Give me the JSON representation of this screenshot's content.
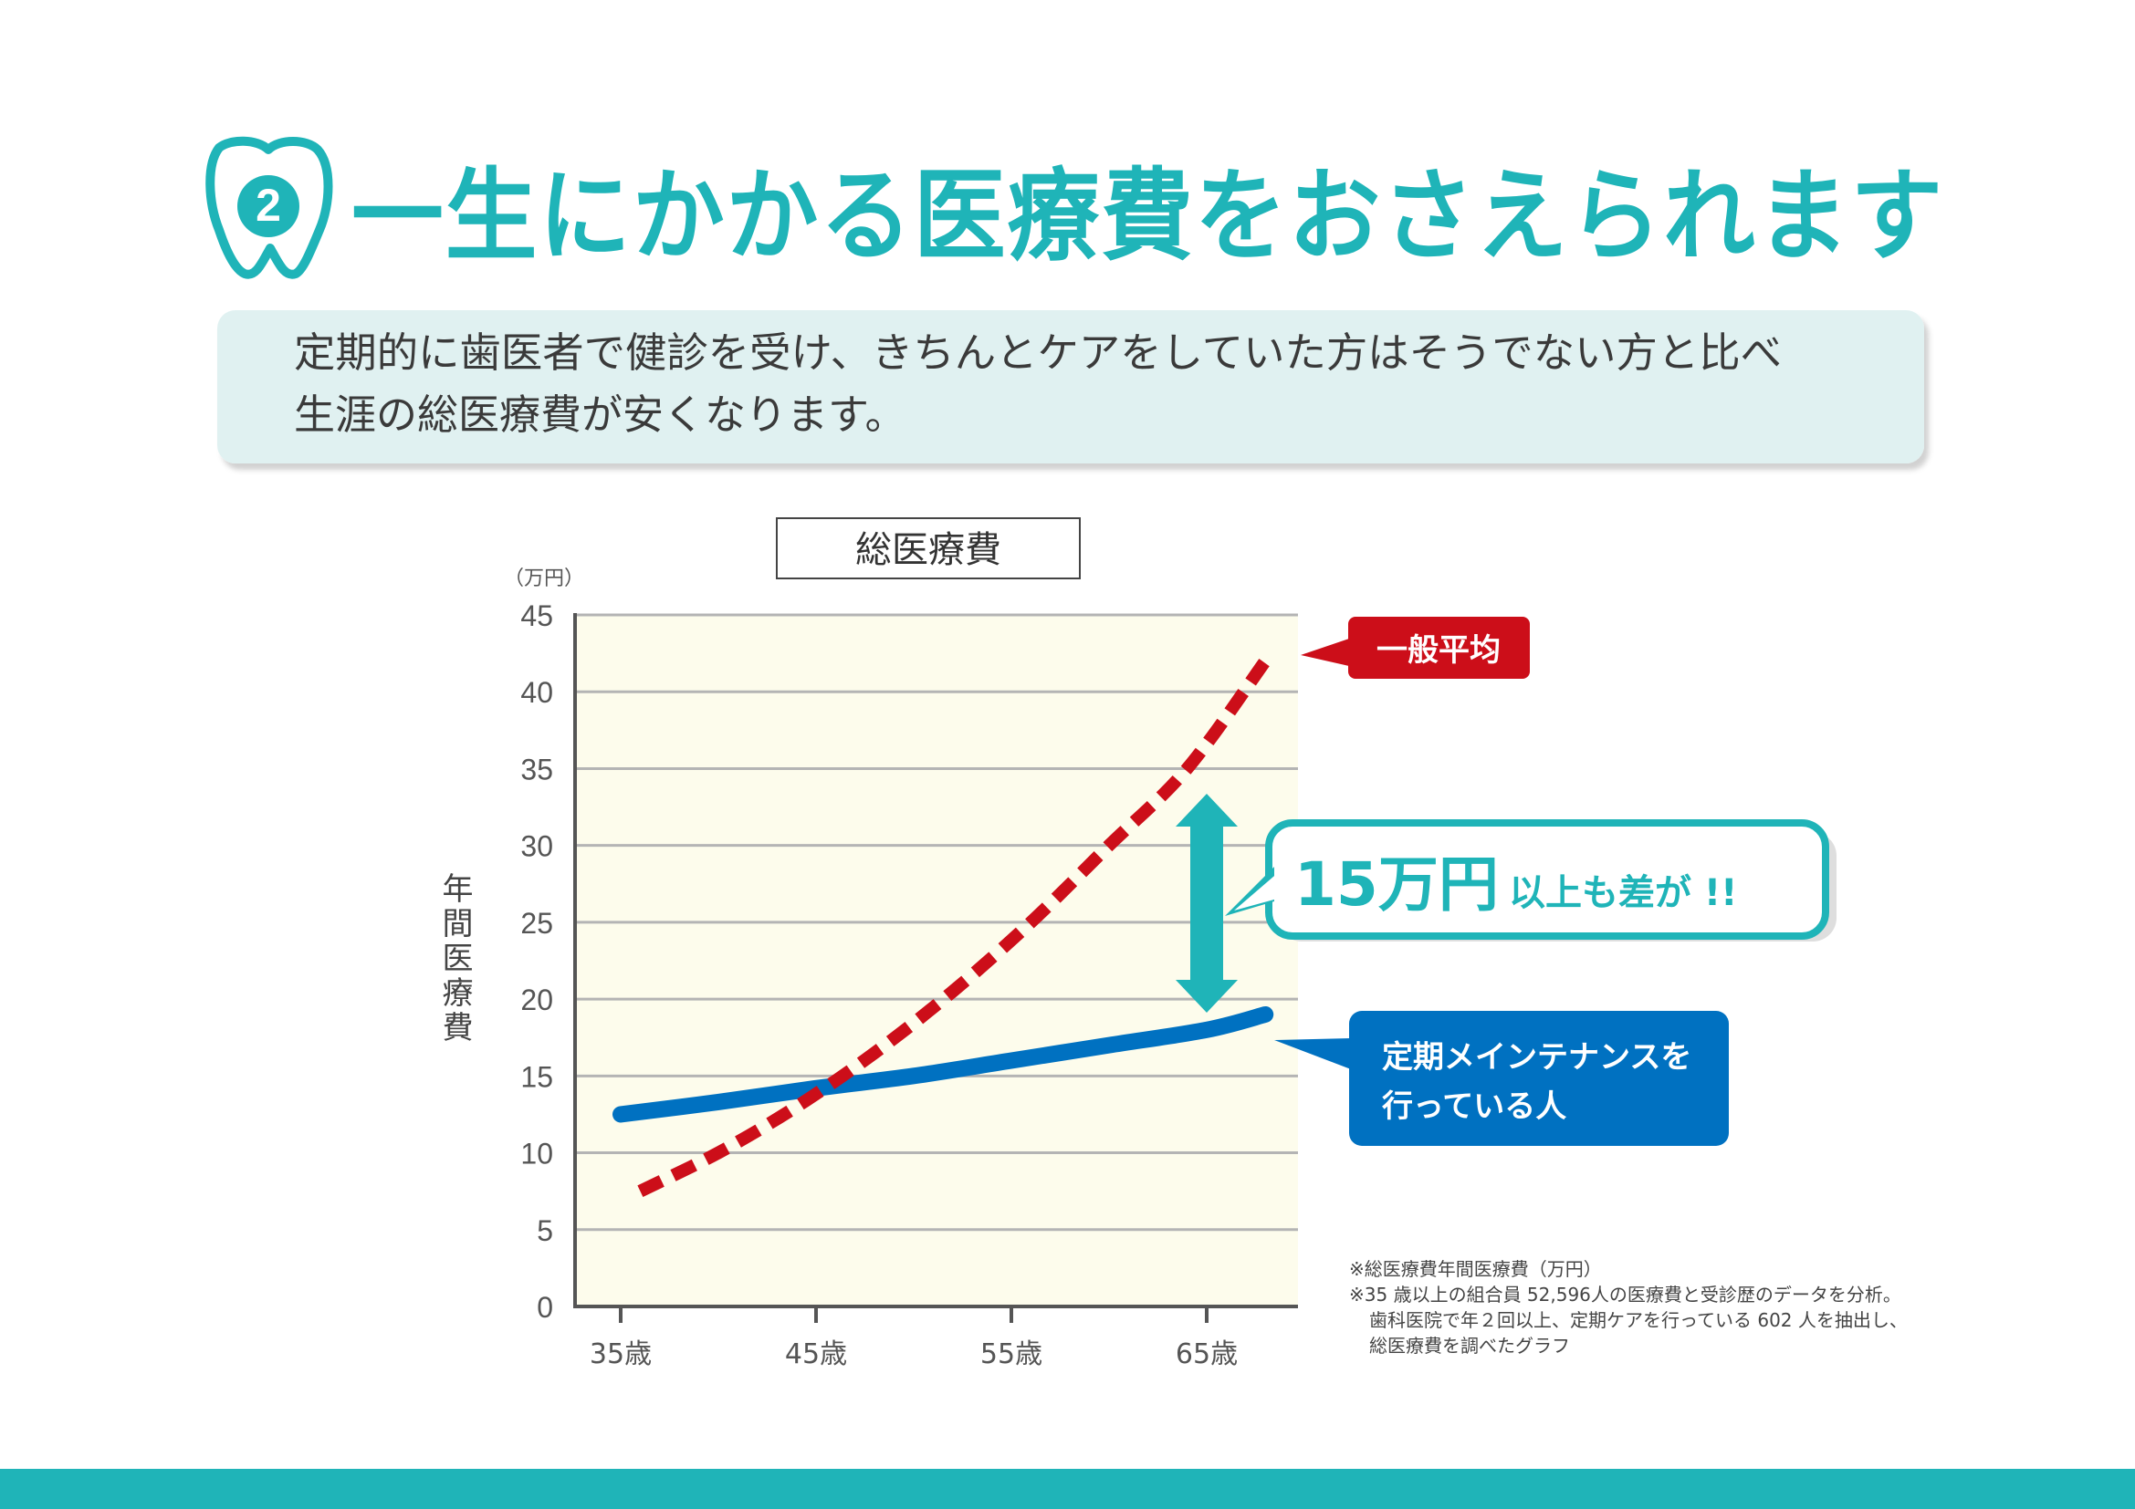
{
  "header": {
    "badge_number": "2",
    "title": "一生にかかる医療費をおさえられます"
  },
  "description": {
    "line1": "定期的に歯医者で健診を受け、きちんとケアをしていた方はそうでない方と比べ",
    "line2": "生涯の総医療費が安くなります。"
  },
  "chart_data": {
    "type": "line",
    "title": "総医療費",
    "unit_label": "（万円）",
    "ylabel": "年間医療費",
    "ylim": [
      0,
      45
    ],
    "yticks": [
      "0",
      "5",
      "10",
      "15",
      "20",
      "25",
      "30",
      "35",
      "40",
      "45"
    ],
    "x_ticks": [
      {
        "label": "35歳",
        "age": 35
      },
      {
        "label": "45歳",
        "age": 45
      },
      {
        "label": "55歳",
        "age": 55
      },
      {
        "label": "65歳",
        "age": 65
      }
    ],
    "grid": true,
    "series": [
      {
        "name": "一般平均",
        "color": "#cc0e19",
        "style": "dashed",
        "points": [
          [
            36,
            7.5
          ],
          [
            40,
            10
          ],
          [
            44,
            13
          ],
          [
            48,
            16.5
          ],
          [
            52,
            20.5
          ],
          [
            56,
            25
          ],
          [
            60,
            30
          ],
          [
            64,
            35
          ],
          [
            68,
            42
          ]
        ]
      },
      {
        "name": "定期メインテナンスを行っている人",
        "label_lines": [
          "定期メインテナンスを",
          "行っている人"
        ],
        "color": "#0071c1",
        "style": "solid",
        "points": [
          [
            35,
            12.5
          ],
          [
            40,
            13.3
          ],
          [
            45,
            14.2
          ],
          [
            50,
            15
          ],
          [
            55,
            16
          ],
          [
            60,
            17
          ],
          [
            65,
            18
          ],
          [
            68,
            19
          ]
        ]
      }
    ],
    "annotation": {
      "big": "15万円",
      "small": "以上も差が !!",
      "color": "#1fb4b8"
    },
    "notes": [
      "※総医療費年間医療費（万円）",
      "※35 歳以上の組合員 52,596人の医療費と受診歴のデータを分析。",
      "歯科医院で年２回以上、定期ケアを行っている 602 人を抽出し、",
      "総医療費を調べたグラフ"
    ]
  },
  "colors": {
    "accent": "#1fb4b8",
    "red": "#cc0e19",
    "blue": "#0071c1",
    "plot_bg": "#fdfcec",
    "desc_bg": "#e0f1f1"
  }
}
